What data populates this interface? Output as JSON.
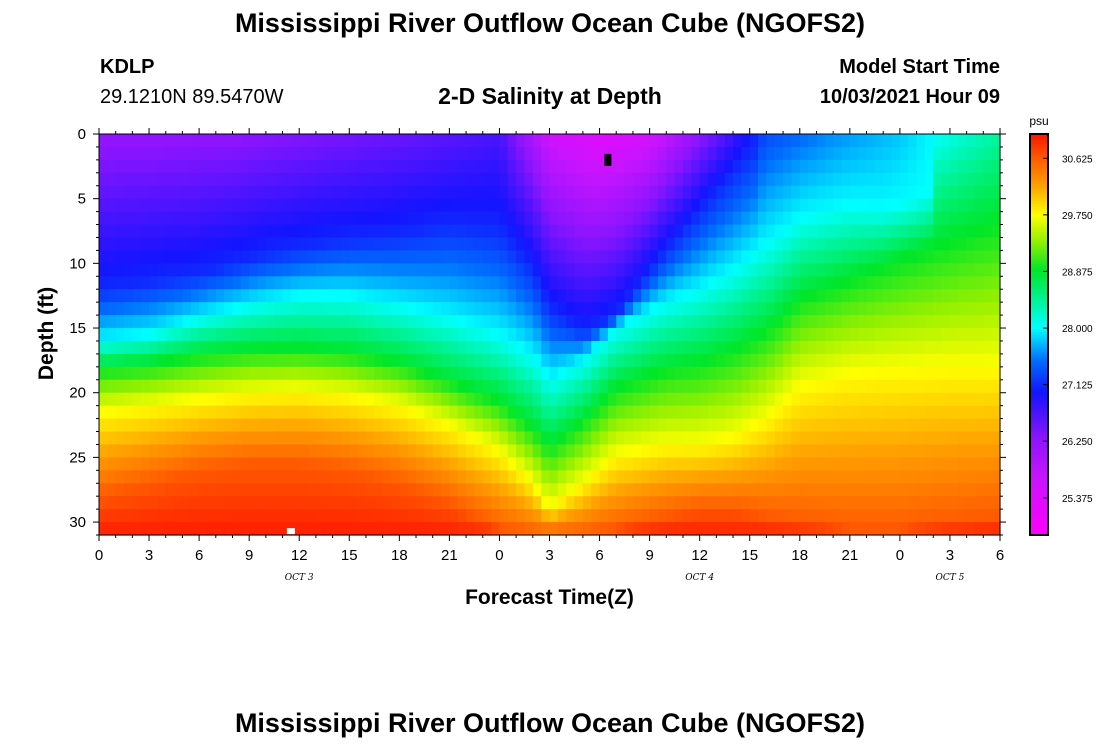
{
  "header": {
    "title": "Mississippi River Outflow Ocean Cube (NGOFS2)",
    "station_id": "KDLP",
    "coordinates": "29.1210N  89.5470W",
    "subtitle": "2-D Salinity at Depth",
    "model_start_label": "Model Start Time",
    "model_start_value": "10/03/2021 Hour 09"
  },
  "footer": {
    "title": "Mississippi River Outflow Ocean Cube (NGOFS2)"
  },
  "chart_data": {
    "type": "heatmap",
    "title": "2-D Salinity at Depth",
    "xlabel": "Forecast Time(Z)",
    "ylabel": "Depth (ft)",
    "xlim": [
      0,
      54
    ],
    "ylim": [
      31,
      0
    ],
    "x_ticks": [
      0,
      3,
      6,
      9,
      12,
      15,
      18,
      21,
      24,
      27,
      30,
      33,
      36,
      39,
      42,
      45,
      48,
      51,
      54
    ],
    "x_tick_labels": [
      "0",
      "3",
      "6",
      "9",
      "12",
      "15",
      "18",
      "21",
      "0",
      "3",
      "6",
      "9",
      "12",
      "15",
      "18",
      "21",
      "0",
      "3",
      "6"
    ],
    "y_ticks": [
      0,
      5,
      10,
      15,
      20,
      25,
      30
    ],
    "y_tick_labels": [
      "0",
      "5",
      "10",
      "15",
      "20",
      "25",
      "30"
    ],
    "date_labels": [
      {
        "text": "OCT 3",
        "hour": 12
      },
      {
        "text": "OCT 4",
        "hour": 36
      },
      {
        "text": "OCT 5",
        "hour": 51
      }
    ],
    "markers": [
      {
        "hour": 30.5,
        "depth": 2,
        "color": "#000000"
      },
      {
        "hour": 11.5,
        "depth": 30.7,
        "color": "#ffffff"
      }
    ],
    "colorbar": {
      "unit": "psu",
      "min": 24.8,
      "max": 31.0,
      "tick_values": [
        25.375,
        26.25,
        27.125,
        28.0,
        28.875,
        29.75,
        30.625
      ],
      "tick_labels": [
        "25.375",
        "26.250",
        "27.125",
        "28.000",
        "28.875",
        "29.750",
        "30.625"
      ]
    },
    "isoline_depth_27p125": [
      [
        0,
        12.0
      ],
      [
        6,
        10.8
      ],
      [
        10,
        9.3
      ],
      [
        14,
        8.3
      ],
      [
        18,
        7.8
      ],
      [
        21,
        7.0
      ],
      [
        24,
        7.4
      ],
      [
        26,
        10.5
      ],
      [
        27,
        13.5
      ],
      [
        29,
        15.3
      ],
      [
        31,
        14.0
      ],
      [
        34,
        9.0
      ],
      [
        37,
        4.5
      ],
      [
        39,
        1.5
      ],
      [
        40,
        0.0
      ]
    ],
    "isoline_depth_28p0": [
      [
        0,
        16.0
      ],
      [
        3,
        15.5
      ],
      [
        6,
        14.2
      ],
      [
        9,
        13.2
      ],
      [
        12,
        12.5
      ],
      [
        15,
        12.5
      ],
      [
        18,
        13.2
      ],
      [
        21,
        14.2
      ],
      [
        24,
        15.5
      ],
      [
        26,
        17.2
      ],
      [
        27,
        19.0
      ],
      [
        29,
        17.5
      ],
      [
        31,
        15.0
      ],
      [
        34,
        13.0
      ],
      [
        36,
        12.0
      ],
      [
        38,
        10.5
      ],
      [
        40,
        8.5
      ],
      [
        42,
        6.5
      ],
      [
        45,
        5.5
      ],
      [
        47,
        5.8
      ],
      [
        49,
        5.0
      ],
      [
        51,
        3.5
      ],
      [
        54,
        2.0
      ]
    ],
    "isoline_depth_28p875": [
      [
        0,
        18.0
      ],
      [
        3,
        17.7
      ],
      [
        6,
        17.0
      ],
      [
        9,
        16.6
      ],
      [
        12,
        16.5
      ],
      [
        15,
        16.8
      ],
      [
        18,
        17.6
      ],
      [
        21,
        19.0
      ],
      [
        24,
        20.5
      ],
      [
        26,
        22.5
      ],
      [
        27,
        24.0
      ],
      [
        29,
        22.0
      ],
      [
        31,
        19.5
      ],
      [
        34,
        18.0
      ],
      [
        36,
        17.5
      ],
      [
        38,
        16.5
      ],
      [
        40,
        15.0
      ],
      [
        42,
        12.5
      ],
      [
        45,
        11.0
      ],
      [
        48,
        9.5
      ],
      [
        51,
        8.0
      ],
      [
        54,
        6.5
      ]
    ],
    "isoline_depth_29p75": [
      [
        0,
        21.5
      ],
      [
        3,
        21.0
      ],
      [
        6,
        20.5
      ],
      [
        9,
        20.0
      ],
      [
        12,
        19.8
      ],
      [
        15,
        20.2
      ],
      [
        18,
        21.0
      ],
      [
        21,
        22.5
      ],
      [
        24,
        24.5
      ],
      [
        26,
        27.0
      ],
      [
        27,
        29.0
      ],
      [
        29,
        27.0
      ],
      [
        31,
        24.8
      ],
      [
        34,
        24.0
      ],
      [
        36,
        24.0
      ],
      [
        38,
        23.5
      ],
      [
        40,
        22.0
      ],
      [
        42,
        19.5
      ],
      [
        45,
        18.5
      ],
      [
        48,
        18.2
      ],
      [
        51,
        18.0
      ],
      [
        54,
        18.0
      ]
    ],
    "isoline_depth_30p625": [
      [
        0,
        28.0
      ],
      [
        3,
        27.0
      ],
      [
        6,
        26.0
      ],
      [
        9,
        25.5
      ],
      [
        12,
        25.5
      ],
      [
        15,
        26.0
      ],
      [
        18,
        27.0
      ],
      [
        21,
        28.5
      ],
      [
        24,
        30.5
      ],
      [
        26,
        31.0
      ],
      [
        27,
        31.0
      ],
      [
        29,
        31.0
      ],
      [
        31,
        30.5
      ],
      [
        34,
        29.5
      ],
      [
        36,
        29.0
      ],
      [
        38,
        29.0
      ],
      [
        40,
        29.5
      ],
      [
        42,
        30.0
      ],
      [
        45,
        30.5
      ],
      [
        48,
        30.5
      ],
      [
        51,
        30.0
      ],
      [
        54,
        29.5
      ]
    ]
  }
}
